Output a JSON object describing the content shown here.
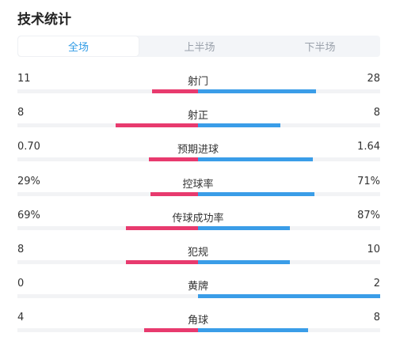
{
  "header": {
    "title": "技术统计"
  },
  "tabs": [
    {
      "label": "全场",
      "active": true
    },
    {
      "label": "上半场",
      "active": false
    },
    {
      "label": "下半场",
      "active": false
    }
  ],
  "colors": {
    "home": "#e83a6e",
    "away": "#3a9de8",
    "active_tab": "#2f9be6"
  },
  "stats": [
    {
      "label": "射门",
      "left": "11",
      "right": "28",
      "home_fraction": 0.28,
      "away_fraction": 0.72
    },
    {
      "label": "射正",
      "left": "8",
      "right": "8",
      "home_fraction": 0.5,
      "away_fraction": 0.5
    },
    {
      "label": "预期进球",
      "left": "0.70",
      "right": "1.64",
      "home_fraction": 0.3,
      "away_fraction": 0.7
    },
    {
      "label": "控球率",
      "left": "29%",
      "right": "71%",
      "home_fraction": 0.29,
      "away_fraction": 0.71
    },
    {
      "label": "传球成功率",
      "left": "69%",
      "right": "87%",
      "home_fraction": 0.44,
      "away_fraction": 0.56
    },
    {
      "label": "犯规",
      "left": "8",
      "right": "10",
      "home_fraction": 0.44,
      "away_fraction": 0.56
    },
    {
      "label": "黄牌",
      "left": "0",
      "right": "2",
      "home_fraction": 0.0,
      "away_fraction": 1.0
    },
    {
      "label": "角球",
      "left": "4",
      "right": "8",
      "home_fraction": 0.33,
      "away_fraction": 0.67
    }
  ]
}
